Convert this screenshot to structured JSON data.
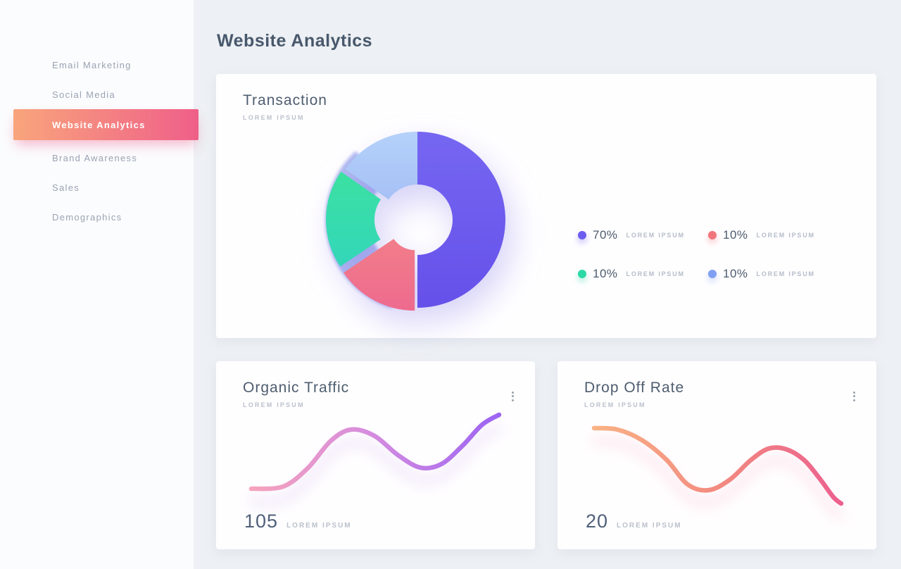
{
  "page_title": "Website Analytics",
  "colors": {
    "background": "#edf0f4",
    "sidebar_bg": "#fbfcfe",
    "card_bg": "#ffffff",
    "heading": "#48586c",
    "active_nav_gradient_start": "#f9a57c",
    "active_nav_gradient_end": "#ef5f89"
  },
  "sidebar": {
    "items": [
      {
        "label": "Email Marketing",
        "active": false
      },
      {
        "label": "Social Media",
        "active": false
      },
      {
        "label": "Website Analytics",
        "active": true
      },
      {
        "label": "Brand Awareness",
        "active": false
      },
      {
        "label": "Sales",
        "active": false
      },
      {
        "label": "Demographics",
        "active": false
      }
    ]
  },
  "transaction_card": {
    "title": "Transaction",
    "subtitle": "LOREM IPSUM",
    "legend": [
      {
        "value": "70%",
        "label": "LOREM IPSUM",
        "color": "#6a5df0"
      },
      {
        "value": "10%",
        "label": "LOREM IPSUM",
        "color": "#f1767b"
      },
      {
        "value": "10%",
        "label": "LOREM IPSUM",
        "color": "#2cd9a6"
      },
      {
        "value": "10%",
        "label": "LOREM IPSUM",
        "color": "#7f9ff2"
      }
    ]
  },
  "organic_card": {
    "title": "Organic Traffic",
    "subtitle": "LOREM IPSUM",
    "stat": "105",
    "stat_label": "LOREM IPSUM",
    "menu_icon": "kebab-vertical-dots"
  },
  "dropoff_card": {
    "title": "Drop Off Rate",
    "subtitle": "LOREM IPSUM",
    "stat": "20",
    "stat_label": "LOREM IPSUM",
    "menu_icon": "kebab-vertical-dots"
  },
  "chart_data": [
    {
      "id": "transaction-donut",
      "type": "pie",
      "title": "Transaction",
      "categories": [
        "LOREM IPSUM",
        "LOREM IPSUM",
        "LOREM IPSUM",
        "LOREM IPSUM"
      ],
      "values": [
        70,
        10,
        10,
        10
      ],
      "legend_position": "right",
      "center": [
        150,
        150
      ],
      "segments": [
        {
          "name": "purple",
          "start": 0,
          "end": 180,
          "outerR": 125,
          "innerR": 50,
          "offset": 0,
          "offsetAngle": 0,
          "colors": [
            "#7667f2",
            "#6550e9"
          ]
        },
        {
          "name": "pink",
          "start": 180,
          "end": 236,
          "outerR": 122,
          "innerR": 36,
          "offset": 8,
          "offsetAngle": 208,
          "colors": [
            "#f79b82",
            "#ee6a8e"
          ]
        },
        {
          "name": "green",
          "start": 236,
          "end": 305,
          "outerR": 119,
          "innerR": 50,
          "offset": 11,
          "offsetAngle": 270,
          "colors": [
            "#3fe596",
            "#2fd2c5"
          ]
        },
        {
          "name": "blue",
          "start": 305,
          "end": 360,
          "outerR": 125,
          "innerR": 50,
          "offset": 0,
          "offsetAngle": 0,
          "colors": [
            "#b5d2fa",
            "#8ea4ee"
          ]
        }
      ],
      "ghost": {
        "start": 196,
        "end": 318,
        "outerR": 131,
        "innerR": 70,
        "color": "#98a4ec",
        "opacity": 0.75
      }
    },
    {
      "id": "organic-line",
      "type": "line",
      "title": "Organic Traffic",
      "stat": 105,
      "stroke_width": 6.5,
      "points": [
        [
          50,
          181
        ],
        [
          95,
          178
        ],
        [
          130,
          152
        ],
        [
          163,
          113
        ],
        [
          192,
          97
        ],
        [
          225,
          106
        ],
        [
          258,
          133
        ],
        [
          290,
          151
        ],
        [
          320,
          146
        ],
        [
          350,
          120
        ],
        [
          378,
          90
        ],
        [
          402,
          76
        ]
      ],
      "gradient": [
        "#f6a3bb",
        "#d48be0",
        "#9c64f2"
      ]
    },
    {
      "id": "dropoff-line",
      "type": "line",
      "title": "Drop Off Rate",
      "stat": 20,
      "stroke_width": 6.5,
      "points": [
        [
          52,
          95
        ],
        [
          85,
          97
        ],
        [
          120,
          112
        ],
        [
          155,
          140
        ],
        [
          185,
          175
        ],
        [
          215,
          183
        ],
        [
          245,
          168
        ],
        [
          275,
          140
        ],
        [
          300,
          124
        ],
        [
          325,
          125
        ],
        [
          350,
          140
        ],
        [
          372,
          166
        ],
        [
          392,
          193
        ],
        [
          403,
          202
        ]
      ],
      "gradient": [
        "#f9b285",
        "#f28b80",
        "#ec608e"
      ]
    }
  ]
}
